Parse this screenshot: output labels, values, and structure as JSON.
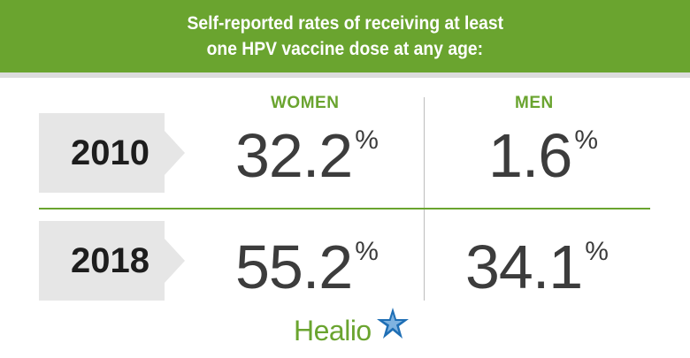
{
  "header": {
    "title_line1": "Self-reported rates of receiving at least",
    "title_line2": "one HPV vaccine dose at any age:"
  },
  "columns": {
    "women": "WOMEN",
    "men": "MEN"
  },
  "rows": [
    {
      "year": "2010",
      "women": "32.2",
      "men": "1.6"
    },
    {
      "year": "2018",
      "women": "55.2",
      "men": "34.1"
    }
  ],
  "percent_symbol": "%",
  "logo": {
    "text": "Healio"
  },
  "colors": {
    "accent_green": "#6aa42f",
    "tag_gray": "#e6e6e6",
    "value_text": "#3c3c3c",
    "logo_star": "#1f6fb5"
  }
}
